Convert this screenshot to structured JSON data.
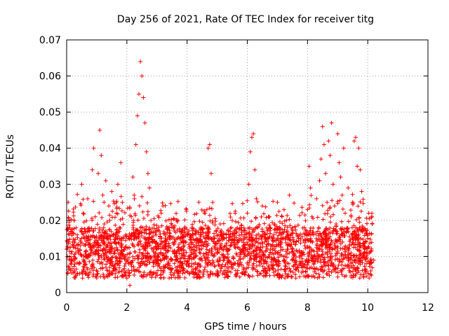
{
  "chart_data": {
    "type": "scatter",
    "title": "Day 256 of 2021, Rate Of TEC Index for receiver titg",
    "xlabel": "GPS time / hours",
    "ylabel": "ROTI / TECUs",
    "xlim": [
      0,
      12
    ],
    "ylim": [
      0,
      0.07
    ],
    "xticks": [
      0,
      2,
      4,
      6,
      8,
      10,
      12
    ],
    "xtick_labels": [
      "0",
      "2",
      "4",
      "6",
      "8",
      "10",
      "12"
    ],
    "yticks": [
      0,
      0.01,
      0.02,
      0.03,
      0.04,
      0.05,
      0.06,
      0.07
    ],
    "ytick_labels": [
      "0",
      "0.01",
      "0.02",
      "0.03",
      "0.04",
      "0.05",
      "0.06",
      "0.07"
    ],
    "grid": true,
    "marker": "+",
    "color": "#ff0000",
    "series": [
      {
        "name": "ROTI",
        "points": [
          [
            0.0,
            0.012
          ],
          [
            0.05,
            0.025
          ],
          [
            0.1,
            0.018
          ],
          [
            0.15,
            0.009
          ],
          [
            0.2,
            0.014
          ],
          [
            0.25,
            0.02
          ],
          [
            0.3,
            0.011
          ],
          [
            0.35,
            0.016
          ],
          [
            0.4,
            0.008
          ],
          [
            0.45,
            0.013
          ],
          [
            0.5,
            0.03
          ],
          [
            0.55,
            0.022
          ],
          [
            0.6,
            0.015
          ],
          [
            0.65,
            0.01
          ],
          [
            0.7,
            0.026
          ],
          [
            0.75,
            0.017
          ],
          [
            0.8,
            0.012
          ],
          [
            0.85,
            0.034
          ],
          [
            0.9,
            0.04
          ],
          [
            0.95,
            0.021
          ],
          [
            1.0,
            0.014
          ],
          [
            1.05,
            0.033
          ],
          [
            1.1,
            0.045
          ],
          [
            1.15,
            0.038
          ],
          [
            1.2,
            0.027
          ],
          [
            1.25,
            0.019
          ],
          [
            1.3,
            0.031
          ],
          [
            1.35,
            0.013
          ],
          [
            1.4,
            0.024
          ],
          [
            1.45,
            0.009
          ],
          [
            1.5,
            0.028
          ],
          [
            1.55,
            0.016
          ],
          [
            1.6,
            0.011
          ],
          [
            1.65,
            0.022
          ],
          [
            1.7,
            0.03
          ],
          [
            1.75,
            0.018
          ],
          [
            1.8,
            0.036
          ],
          [
            1.85,
            0.025
          ],
          [
            1.9,
            0.012
          ],
          [
            1.95,
            0.008
          ],
          [
            2.0,
            0.004
          ],
          [
            2.05,
            0.015
          ],
          [
            2.1,
            0.002
          ],
          [
            2.15,
            0.021
          ],
          [
            2.2,
            0.032
          ],
          [
            2.25,
            0.026
          ],
          [
            2.3,
            0.041
          ],
          [
            2.35,
            0.049
          ],
          [
            2.4,
            0.055
          ],
          [
            2.45,
            0.064
          ],
          [
            2.5,
            0.06
          ],
          [
            2.55,
            0.054
          ],
          [
            2.6,
            0.047
          ],
          [
            2.65,
            0.039
          ],
          [
            2.7,
            0.033
          ],
          [
            2.75,
            0.029
          ],
          [
            2.8,
            0.02
          ],
          [
            2.85,
            0.014
          ],
          [
            2.9,
            0.01
          ],
          [
            2.95,
            0.017
          ],
          [
            3.0,
            0.012
          ],
          [
            3.05,
            0.008
          ],
          [
            3.1,
            0.015
          ],
          [
            3.2,
            0.024
          ],
          [
            3.3,
            0.011
          ],
          [
            3.4,
            0.018
          ],
          [
            3.5,
            0.009
          ],
          [
            3.6,
            0.014
          ],
          [
            3.7,
            0.02
          ],
          [
            3.8,
            0.007
          ],
          [
            3.9,
            0.013
          ],
          [
            4.0,
            0.016
          ],
          [
            4.1,
            0.01
          ],
          [
            4.2,
            0.012
          ],
          [
            4.3,
            0.017
          ],
          [
            4.4,
            0.008
          ],
          [
            4.5,
            0.014
          ],
          [
            4.6,
            0.022
          ],
          [
            4.7,
            0.04
          ],
          [
            4.75,
            0.041
          ],
          [
            4.8,
            0.033
          ],
          [
            4.85,
            0.025
          ],
          [
            4.9,
            0.015
          ],
          [
            5.0,
            0.011
          ],
          [
            5.1,
            0.019
          ],
          [
            5.2,
            0.009
          ],
          [
            5.3,
            0.016
          ],
          [
            5.4,
            0.012
          ],
          [
            5.5,
            0.02
          ],
          [
            5.6,
            0.008
          ],
          [
            5.7,
            0.014
          ],
          [
            5.8,
            0.018
          ],
          [
            5.9,
            0.011
          ],
          [
            6.0,
            0.022
          ],
          [
            6.05,
            0.03
          ],
          [
            6.1,
            0.039
          ],
          [
            6.15,
            0.043
          ],
          [
            6.2,
            0.044
          ],
          [
            6.25,
            0.034
          ],
          [
            6.3,
            0.026
          ],
          [
            6.35,
            0.018
          ],
          [
            6.4,
            0.012
          ],
          [
            6.5,
            0.024
          ],
          [
            6.6,
            0.016
          ],
          [
            6.7,
            0.021
          ],
          [
            6.8,
            0.013
          ],
          [
            6.9,
            0.019
          ],
          [
            7.0,
            0.025
          ],
          [
            7.1,
            0.014
          ],
          [
            7.2,
            0.01
          ],
          [
            7.3,
            0.02
          ],
          [
            7.4,
            0.027
          ],
          [
            7.5,
            0.012
          ],
          [
            7.6,
            0.009
          ],
          [
            7.7,
            0.015
          ],
          [
            7.8,
            0.011
          ],
          [
            7.9,
            0.018
          ],
          [
            8.0,
            0.023
          ],
          [
            8.05,
            0.035
          ],
          [
            8.1,
            0.029
          ],
          [
            8.15,
            0.021
          ],
          [
            8.2,
            0.016
          ],
          [
            8.3,
            0.026
          ],
          [
            8.4,
            0.031
          ],
          [
            8.45,
            0.037
          ],
          [
            8.5,
            0.046
          ],
          [
            8.55,
            0.041
          ],
          [
            8.6,
            0.033
          ],
          [
            8.65,
            0.025
          ],
          [
            8.7,
            0.042
          ],
          [
            8.75,
            0.038
          ],
          [
            8.8,
            0.047
          ],
          [
            8.85,
            0.03
          ],
          [
            8.9,
            0.024
          ],
          [
            8.95,
            0.019
          ],
          [
            9.0,
            0.044
          ],
          [
            9.05,
            0.036
          ],
          [
            9.1,
            0.032
          ],
          [
            9.15,
            0.027
          ],
          [
            9.2,
            0.04
          ],
          [
            9.25,
            0.022
          ],
          [
            9.3,
            0.017
          ],
          [
            9.35,
            0.029
          ],
          [
            9.4,
            0.013
          ],
          [
            9.45,
            0.021
          ],
          [
            9.5,
            0.025
          ],
          [
            9.55,
            0.042
          ],
          [
            9.6,
            0.043
          ],
          [
            9.65,
            0.035
          ],
          [
            9.7,
            0.04
          ],
          [
            9.75,
            0.034
          ],
          [
            9.8,
            0.028
          ],
          [
            9.85,
            0.018
          ],
          [
            9.9,
            0.012
          ],
          [
            9.95,
            0.008
          ],
          [
            10.0,
            0.015
          ],
          [
            10.05,
            0.011
          ],
          [
            10.1,
            0.006
          ],
          [
            10.15,
            0.019
          ],
          [
            10.2,
            0.009
          ]
        ]
      }
    ],
    "dense_band": {
      "x_range": [
        0,
        10.15
      ],
      "y_base_range": [
        0.004,
        0.018
      ],
      "note": "dense cloud of ROTI samples"
    }
  }
}
